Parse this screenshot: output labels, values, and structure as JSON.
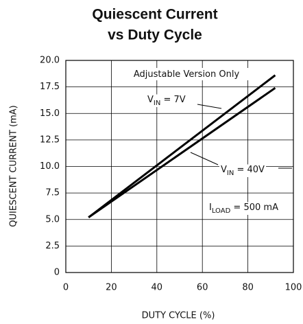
{
  "chart_data": {
    "type": "line",
    "title": [
      "Quiescent Current",
      "vs Duty Cycle"
    ],
    "x_label": "DUTY CYCLE (%)",
    "y_label": "QUIESCENT CURRENT (mA)",
    "x": [
      10,
      92
    ],
    "series": [
      {
        "name": "VIN = 7V",
        "color": "#000000",
        "values": [
          5.2,
          18.6
        ]
      },
      {
        "name": "VIN = 40V",
        "color": "#000000",
        "values": [
          5.2,
          17.4
        ]
      }
    ],
    "annotations": [
      {
        "text": "Adjustable Version Only"
      },
      {
        "text": "V",
        "subscript": "IN",
        "suffix": " = 7V"
      },
      {
        "text": "V",
        "subscript": "IN",
        "suffix": " = 40V"
      },
      {
        "text": "I",
        "subscript": "LOAD",
        "suffix": " = 500 mA"
      }
    ],
    "xlim": [
      0,
      100
    ],
    "xticks": [
      0,
      20,
      40,
      60,
      80,
      100
    ],
    "ylim": [
      0,
      20
    ],
    "yticks": [
      0,
      2.5,
      {
        "value": 5,
        "label": "5.0"
      },
      7.5,
      {
        "value": 10,
        "label": "10.0"
      },
      12.5,
      {
        "value": 15,
        "label": "15.0"
      },
      17.5,
      {
        "value": 20,
        "label": "20.0"
      }
    ],
    "grid": true
  }
}
